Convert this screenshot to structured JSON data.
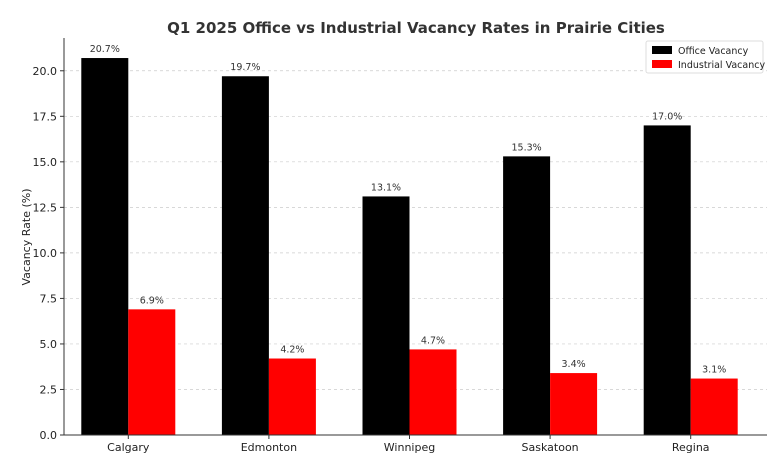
{
  "chart_data": {
    "type": "bar",
    "title": "Q1 2025 Office vs Industrial Vacancy Rates in Prairie Cities",
    "xlabel": "",
    "ylabel": "Vacancy Rate (%)",
    "categories": [
      "Calgary",
      "Edmonton",
      "Winnipeg",
      "Saskatoon",
      "Regina"
    ],
    "series": [
      {
        "name": "Office Vacancy",
        "color": "#000000",
        "values": [
          20.7,
          19.7,
          13.1,
          15.3,
          17.0
        ],
        "labels": [
          "20.7%",
          "19.7%",
          "13.1%",
          "15.3%",
          "17.0%"
        ]
      },
      {
        "name": "Industrial Vacancy",
        "color": "#ff0000",
        "values": [
          6.9,
          4.2,
          4.7,
          3.4,
          3.1
        ],
        "labels": [
          "6.9%",
          "4.2%",
          "4.7%",
          "3.4%",
          "3.1%"
        ]
      }
    ],
    "ylim": [
      0,
      21.8
    ],
    "yticks": [
      0.0,
      2.5,
      5.0,
      7.5,
      10.0,
      12.5,
      15.0,
      17.5,
      20.0
    ],
    "ytick_labels": [
      "0.0",
      "2.5",
      "5.0",
      "7.5",
      "10.0",
      "12.5",
      "15.0",
      "17.5",
      "20.0"
    ],
    "grid": true,
    "legend_position": "top-right"
  }
}
